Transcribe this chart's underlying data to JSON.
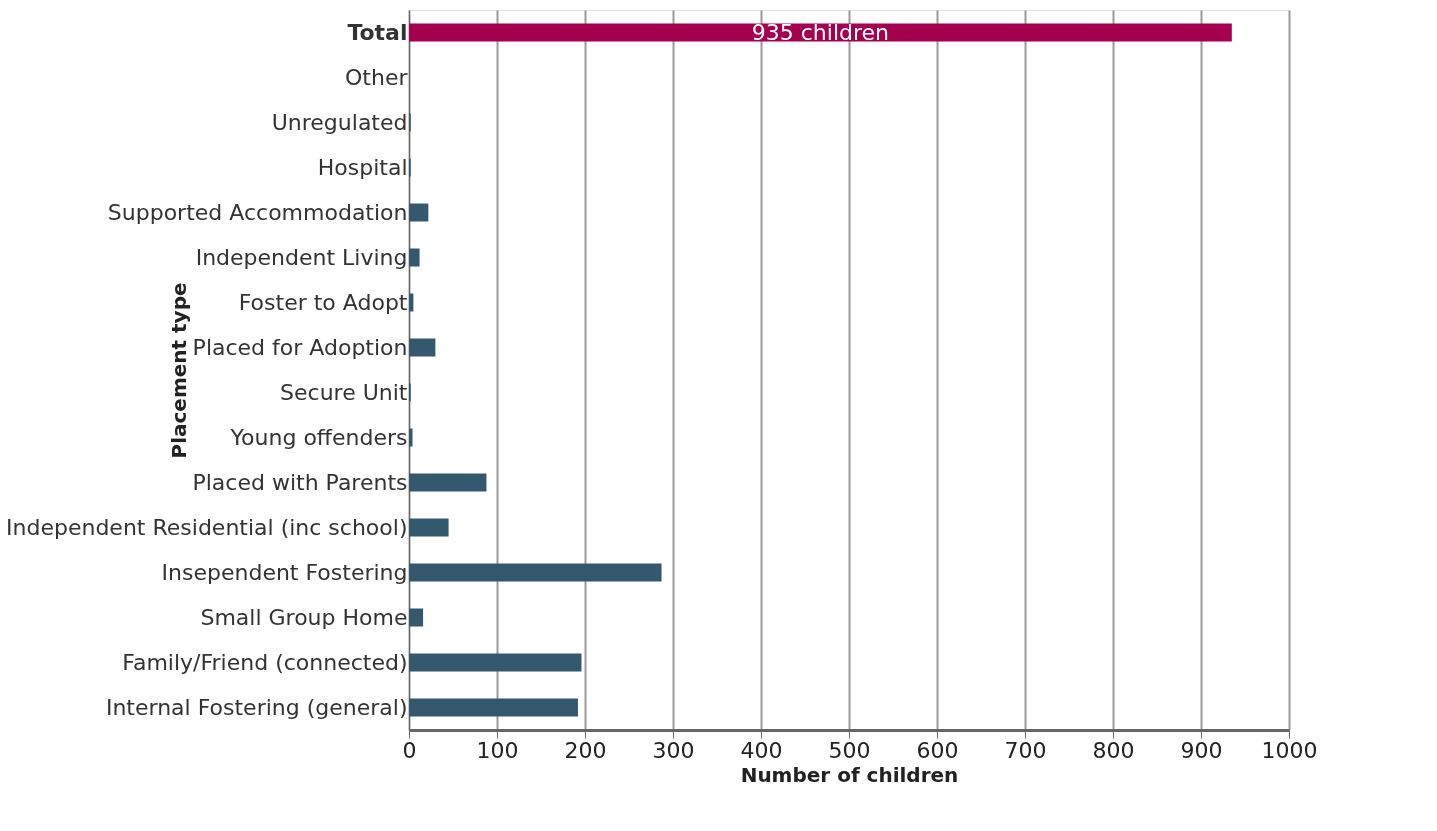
{
  "chart_data": {
    "type": "bar",
    "orientation": "horizontal",
    "xlabel": "Number of children",
    "ylabel": "Placement type",
    "categories": [
      "Total",
      "Other",
      "Unregulated",
      "Hospital",
      "Supported Accommodation",
      "Independent Living",
      "Foster to Adopt",
      "Placed for Adoption",
      "Secure Unit",
      "Young offenders",
      "Placed with Parents",
      "Independent Residential (inc school)",
      "Insependent Fostering",
      "Small Group Home",
      "Family/Friend (connected)",
      "Internal Fostering (general)"
    ],
    "values": [
      935,
      0,
      2,
      2,
      22,
      12,
      5,
      30,
      2,
      4,
      88,
      45,
      287,
      16,
      196,
      192
    ],
    "colors": [
      "#a50050",
      "#34596f",
      "#34596f",
      "#34596f",
      "#34596f",
      "#34596f",
      "#34596f",
      "#34596f",
      "#34596f",
      "#34596f",
      "#34596f",
      "#34596f",
      "#34596f",
      "#34596f",
      "#34596f",
      "#34596f"
    ],
    "value_labels": [
      "935 children",
      null,
      null,
      null,
      null,
      null,
      null,
      null,
      null,
      null,
      null,
      null,
      null,
      null,
      null,
      null
    ],
    "xlim": [
      0,
      1000
    ],
    "xticks": [
      0,
      100,
      200,
      300,
      400,
      500,
      600,
      700,
      800,
      900,
      1000
    ],
    "grid": "x"
  }
}
